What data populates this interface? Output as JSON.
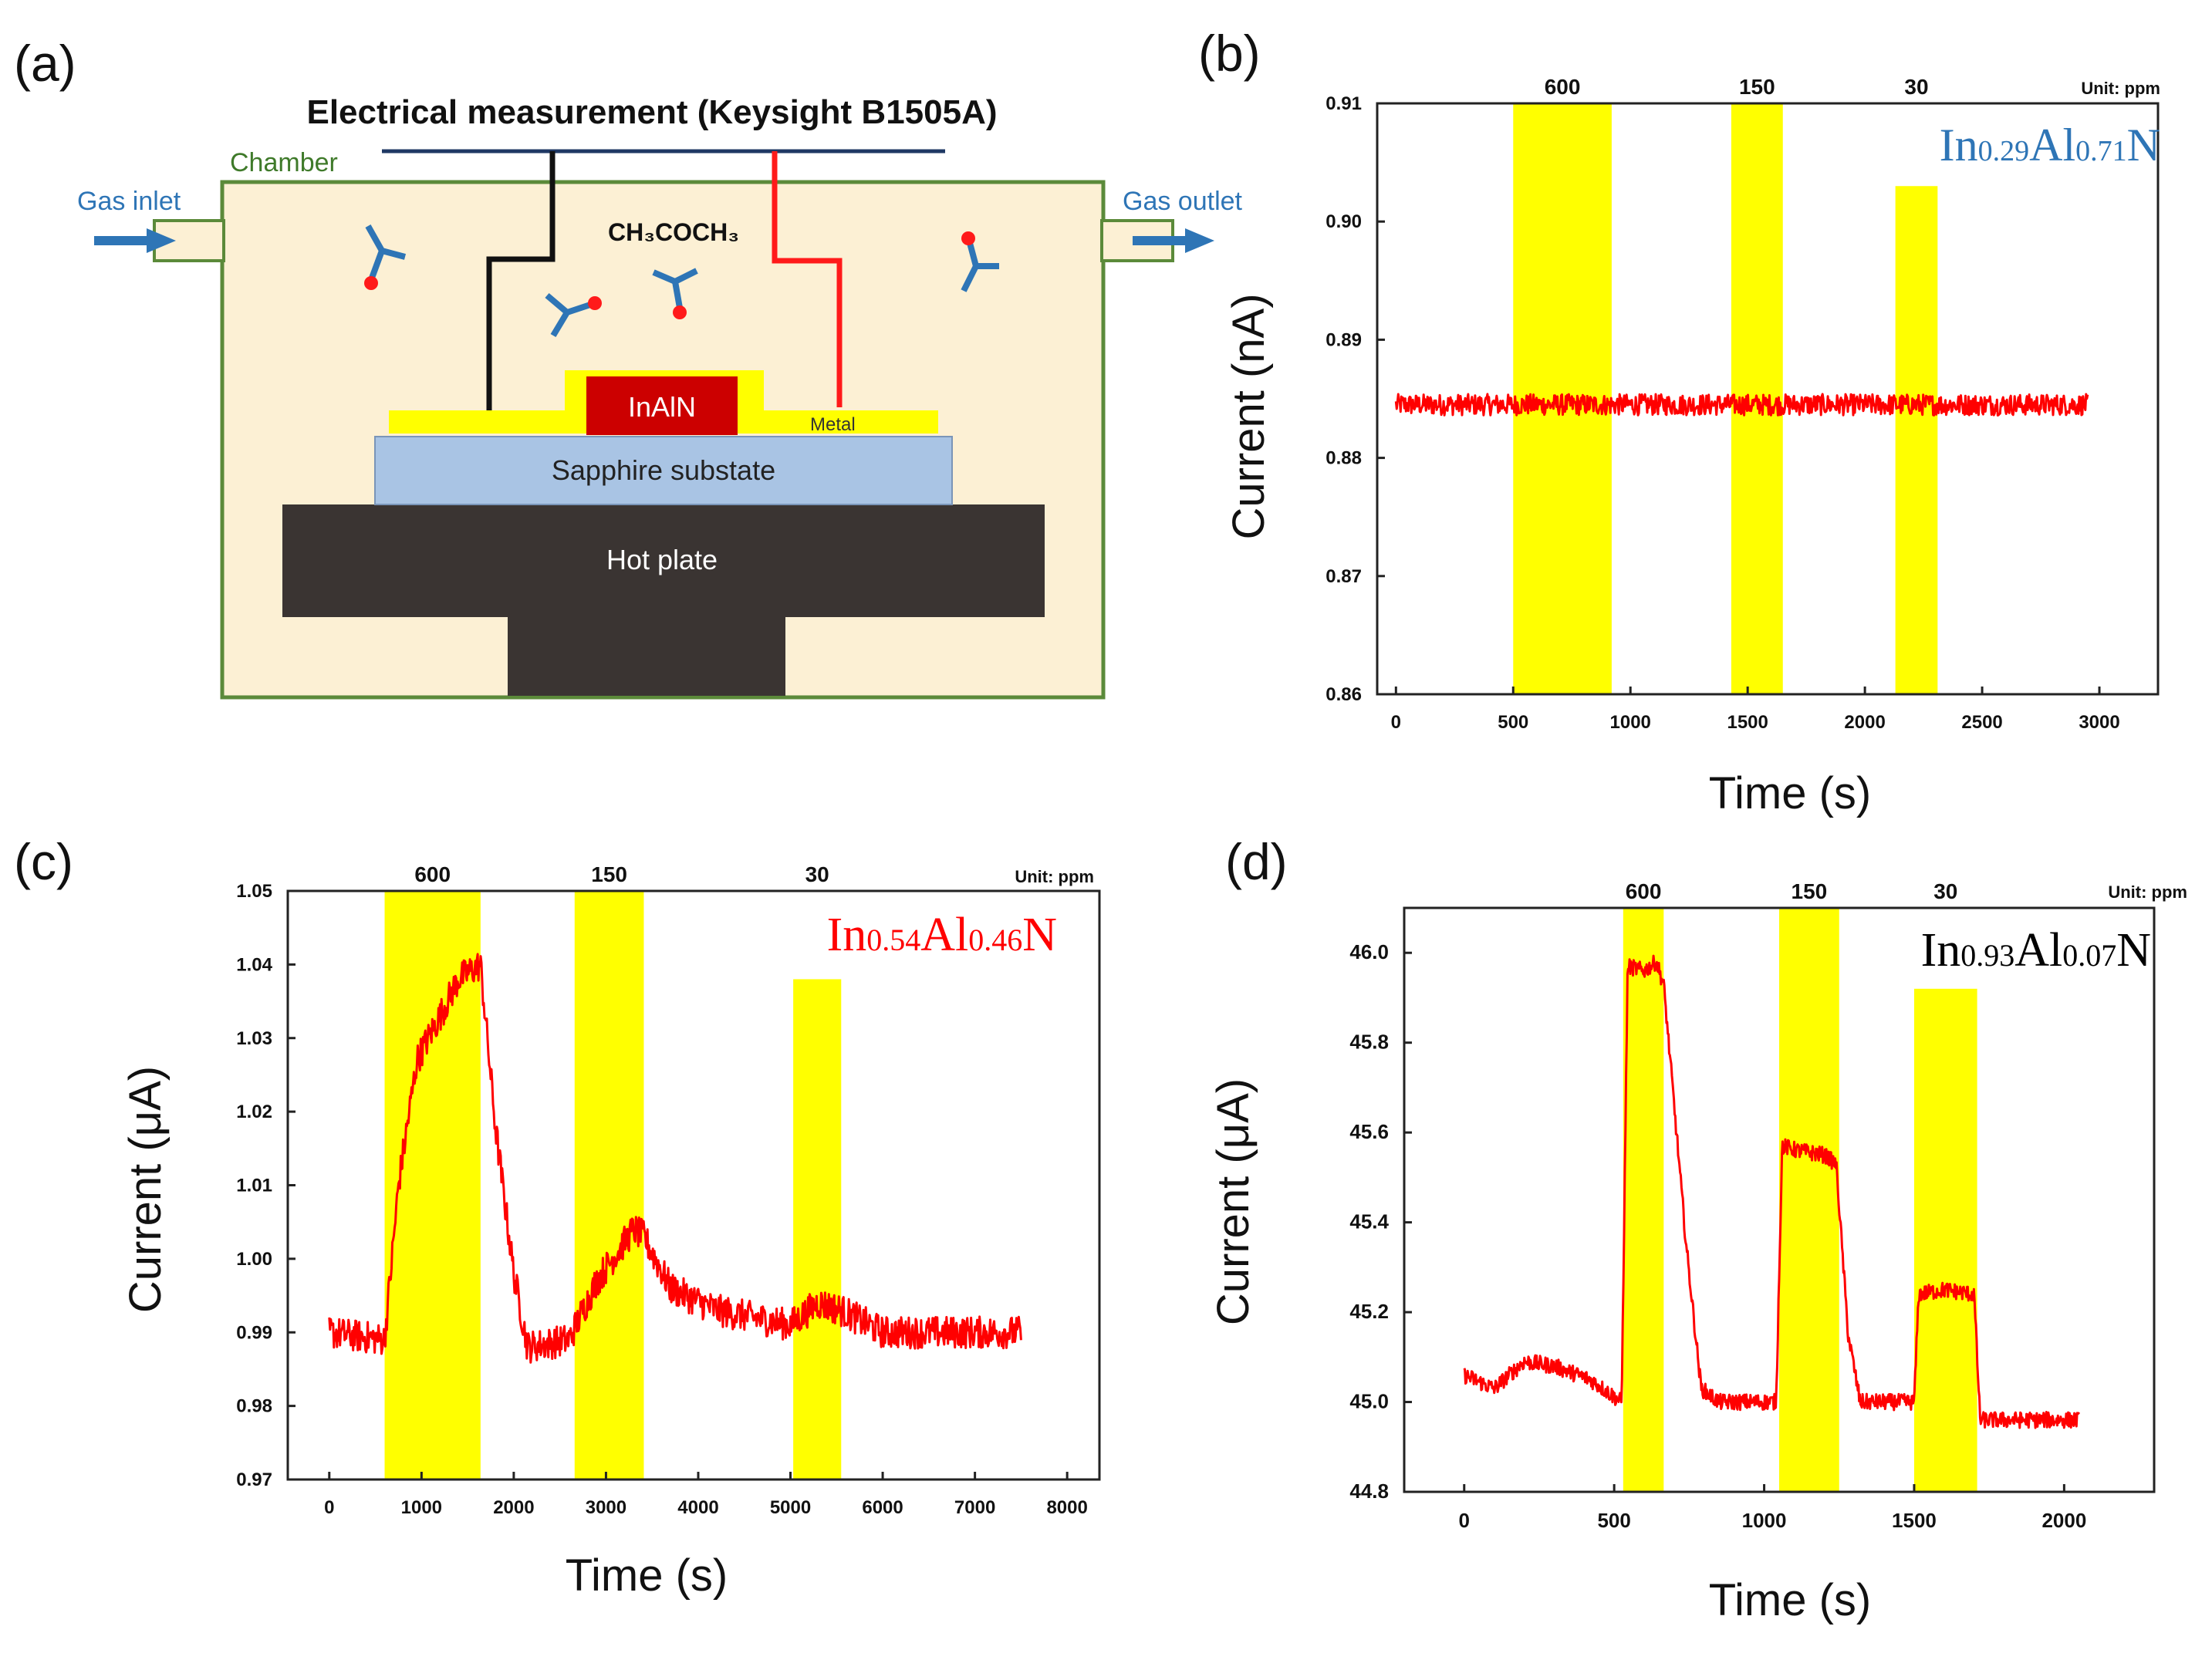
{
  "panels": {
    "a": {
      "label": "(a)"
    },
    "b": {
      "label": "(b)"
    },
    "c": {
      "label": "(c)"
    },
    "d": {
      "label": "(d)"
    }
  },
  "schematic": {
    "instrument": "Electrical measurement (Keysight B1505A)",
    "chamber": "Chamber",
    "gas_inlet": "Gas inlet",
    "gas_outlet": "Gas outlet",
    "molecule_formula": "CH₃COCH₃",
    "sensor_material": "InAlN",
    "metal": "Metal",
    "substrate": "Sapphire substate",
    "hot_plate": "Hot plate",
    "colors": {
      "chamber_fill": "#fcf0d4",
      "chamber_border": "#5b8a3a",
      "metal": "#ffff00",
      "sensor": "#cc0000",
      "substrate": "#a9c4e4",
      "hot_plate": "#3a3432",
      "arrow": "#2e75b6",
      "wire_black": "#111111",
      "wire_red": "#ff1a1a"
    }
  },
  "chart_data": [
    {
      "id": "b",
      "type": "line",
      "xlabel": "Time (s)",
      "ylabel": "Current (nA)",
      "xlim": [
        -80,
        3250
      ],
      "ylim": [
        0.86,
        0.91
      ],
      "xticks": [
        0,
        500,
        1000,
        1500,
        2000,
        2500,
        3000
      ],
      "yticks": [
        0.86,
        0.87,
        0.88,
        0.89,
        0.9,
        0.91
      ],
      "ytick_labels": [
        "0.86",
        "0.87",
        "0.88",
        "0.89",
        "0.90",
        "0.91"
      ],
      "unit_note": "Unit: ppm",
      "material": {
        "el1": "In",
        "sub1": "0.29",
        "el2": "Al",
        "sub2": "0.71",
        "el3": "N"
      },
      "material_color": "#2e75b6",
      "exposures": [
        {
          "label": "600",
          "start": 500,
          "end": 920,
          "top": 0.91
        },
        {
          "label": "150",
          "start": 1430,
          "end": 1650,
          "top": 0.91
        },
        {
          "label": "30",
          "start": 2130,
          "end": 2310,
          "top": 0.903
        }
      ],
      "series": [
        {
          "name": "current",
          "color": "#ff0000",
          "noise": 0.0009,
          "points": [
            [
              0,
              0.8845
            ],
            [
              2950,
              0.8845
            ]
          ]
        }
      ]
    },
    {
      "id": "c",
      "type": "line",
      "xlabel": "Time (s)",
      "ylabel": "Current (μA)",
      "xlim": [
        -450,
        8350
      ],
      "ylim": [
        0.97,
        1.05
      ],
      "xticks": [
        0,
        1000,
        2000,
        3000,
        4000,
        5000,
        6000,
        7000,
        8000
      ],
      "yticks": [
        0.97,
        0.98,
        0.99,
        1.0,
        1.01,
        1.02,
        1.03,
        1.04,
        1.05
      ],
      "ytick_labels": [
        "0.97",
        "0.98",
        "0.99",
        "1.00",
        "1.01",
        "1.02",
        "1.03",
        "1.04",
        "1.05"
      ],
      "unit_note": "Unit: ppm",
      "material": {
        "el1": "In",
        "sub1": "0.54",
        "el2": "Al",
        "sub2": "0.46",
        "el3": "N"
      },
      "material_color": "#ff0000",
      "exposures": [
        {
          "label": "600",
          "start": 600,
          "end": 1640,
          "top": 1.05
        },
        {
          "label": "150",
          "start": 2660,
          "end": 3410,
          "top": 1.05
        },
        {
          "label": "30",
          "start": 5030,
          "end": 5550,
          "top": 1.038
        }
      ],
      "series": [
        {
          "name": "current",
          "color": "#ff0000",
          "noise": 0.0022,
          "points": [
            [
              0,
              0.99
            ],
            [
              600,
              0.989
            ],
            [
              750,
              1.01
            ],
            [
              950,
              1.027
            ],
            [
              1200,
              1.033
            ],
            [
              1400,
              1.038
            ],
            [
              1640,
              1.04
            ],
            [
              1800,
              1.018
            ],
            [
              2000,
              0.998
            ],
            [
              2150,
              0.988
            ],
            [
              2600,
              0.989
            ],
            [
              2900,
              0.997
            ],
            [
              3300,
              1.004
            ],
            [
              3410,
              1.003
            ],
            [
              3700,
              0.996
            ],
            [
              4200,
              0.993
            ],
            [
              5000,
              0.991
            ],
            [
              5300,
              0.994
            ],
            [
              5550,
              0.993
            ],
            [
              6000,
              0.99
            ],
            [
              7500,
              0.99
            ]
          ]
        }
      ]
    },
    {
      "id": "d",
      "type": "line",
      "xlabel": "Time (s)",
      "ylabel": "Current (μA)",
      "xlim": [
        -200,
        2300
      ],
      "ylim": [
        44.8,
        46.1
      ],
      "xticks": [
        0,
        500,
        1000,
        1500,
        2000
      ],
      "yticks": [
        44.8,
        45.0,
        45.2,
        45.4,
        45.6,
        45.8,
        46.0
      ],
      "ytick_labels": [
        "44.8",
        "45.0",
        "45.2",
        "45.4",
        "45.6",
        "45.8",
        "46.0"
      ],
      "unit_note": "Unit: ppm",
      "material": {
        "el1": "In",
        "sub1": "0.93",
        "el2": "Al",
        "sub2": "0.07",
        "el3": "N"
      },
      "material_color": "#000000",
      "exposures": [
        {
          "label": "600",
          "start": 530,
          "end": 665,
          "top": 46.1
        },
        {
          "label": "150",
          "start": 1050,
          "end": 1250,
          "top": 46.1
        },
        {
          "label": "30",
          "start": 1500,
          "end": 1710,
          "top": 45.92
        }
      ],
      "series": [
        {
          "name": "current",
          "color": "#ff0000",
          "noise": 0.018,
          "points": [
            [
              0,
              45.06
            ],
            [
              100,
              45.03
            ],
            [
              200,
              45.09
            ],
            [
              300,
              45.08
            ],
            [
              420,
              45.05
            ],
            [
              525,
              45.0
            ],
            [
              545,
              45.97
            ],
            [
              600,
              45.96
            ],
            [
              640,
              45.98
            ],
            [
              665,
              45.93
            ],
            [
              740,
              45.35
            ],
            [
              790,
              45.03
            ],
            [
              850,
              45.0
            ],
            [
              1040,
              45.0
            ],
            [
              1060,
              45.57
            ],
            [
              1110,
              45.56
            ],
            [
              1200,
              45.55
            ],
            [
              1240,
              45.53
            ],
            [
              1280,
              45.15
            ],
            [
              1320,
              45.0
            ],
            [
              1400,
              45.0
            ],
            [
              1500,
              45.0
            ],
            [
              1515,
              45.24
            ],
            [
              1600,
              45.25
            ],
            [
              1700,
              45.24
            ],
            [
              1720,
              44.96
            ],
            [
              1800,
              44.96
            ],
            [
              2050,
              44.96
            ]
          ]
        }
      ]
    }
  ]
}
